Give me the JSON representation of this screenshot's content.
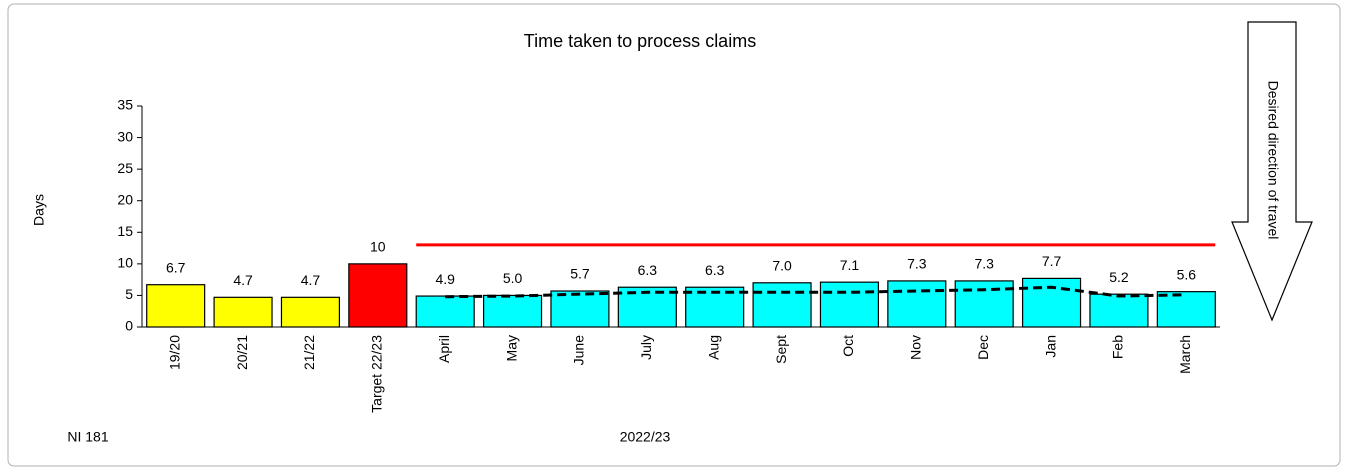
{
  "chart_data": {
    "type": "bar",
    "title": "Time taken to process claims",
    "y_label": "Days",
    "x_label": "2022/23",
    "note": "NI 181",
    "annotation": "Desired direction of travel",
    "categories": [
      "19/20",
      "20/21",
      "21/22",
      "Target 22/23",
      "April",
      "May",
      "June",
      "July",
      "Aug",
      "Sept",
      "Oct",
      "Nov",
      "Dec",
      "Jan",
      "Feb",
      "March"
    ],
    "values": [
      6.7,
      4.7,
      4.7,
      10,
      4.9,
      5.0,
      5.7,
      6.3,
      6.3,
      7.0,
      7.1,
      7.3,
      7.3,
      7.7,
      5.2,
      5.6
    ],
    "value_labels": [
      "6.7",
      "4.7",
      "4.7",
      "10",
      "4.9",
      "5.0",
      "5.7",
      "6.3",
      "6.3",
      "7.0",
      "7.1",
      "7.3",
      "7.3",
      "7.7",
      "5.2",
      "5.6"
    ],
    "colors": [
      "#ffff00",
      "#ffff00",
      "#ffff00",
      "#ff0000",
      "#00ffff",
      "#00ffff",
      "#00ffff",
      "#00ffff",
      "#00ffff",
      "#00ffff",
      "#00ffff",
      "#00ffff",
      "#00ffff",
      "#00ffff",
      "#00ffff",
      "#00ffff"
    ],
    "lines": [
      {
        "color": "#ff0000",
        "style": "solid",
        "values": [
          null,
          null,
          null,
          null,
          13,
          13,
          13,
          13,
          13,
          13,
          13,
          13,
          13,
          13,
          13,
          13
        ]
      },
      {
        "color": "#000000",
        "style": "dashed",
        "values": [
          null,
          null,
          null,
          null,
          4.8,
          4.9,
          5.2,
          5.5,
          5.5,
          5.5,
          5.5,
          5.7,
          5.9,
          6.3,
          4.9,
          5.1
        ]
      }
    ],
    "ylim": [
      0,
      35
    ],
    "yticks": [
      0,
      5,
      10,
      15,
      20,
      25,
      30,
      35
    ],
    "grid": false
  }
}
